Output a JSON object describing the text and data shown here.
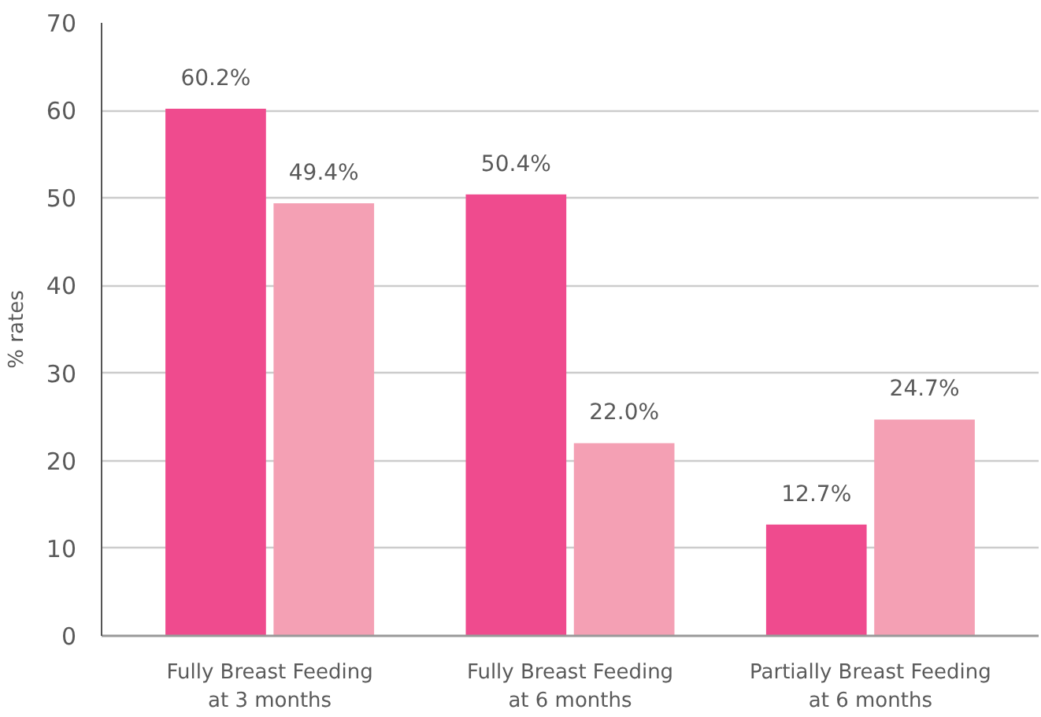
{
  "chart_data": {
    "type": "bar",
    "ylabel": "% rates",
    "categories": [
      "Fully Breast Feeding\nat 3 months",
      "Fully Breast Feeding\nat 6 months",
      "Partially Breast Feeding\nat 6 months"
    ],
    "series": [
      {
        "color": "#ef4b8e",
        "values": [
          60.2,
          50.4,
          12.7
        ],
        "value_labels": [
          "60.2%",
          "50.4%",
          "12.7%"
        ]
      },
      {
        "color": "#f4a0b4",
        "values": [
          49.4,
          22.0,
          24.7
        ],
        "value_labels": [
          "49.4%",
          "22.0%",
          "24.7%"
        ]
      }
    ],
    "ylim": [
      0,
      70
    ],
    "yticks": [
      0,
      10,
      20,
      30,
      40,
      50,
      60,
      70
    ],
    "grid": "y"
  }
}
